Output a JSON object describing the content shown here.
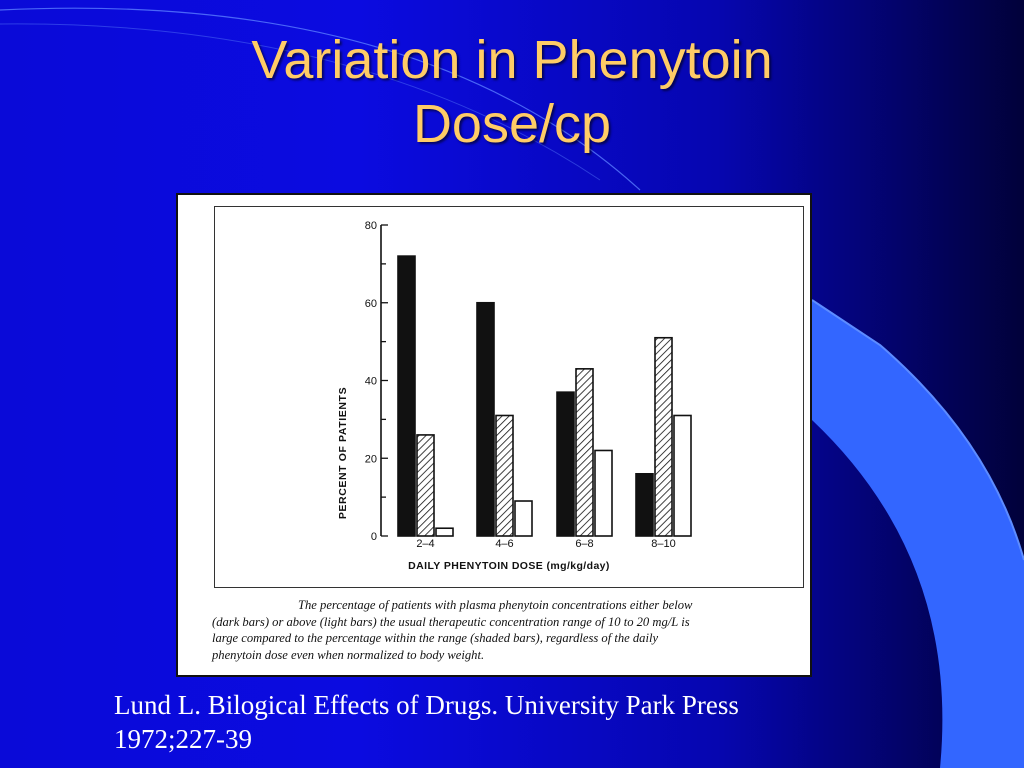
{
  "slide": {
    "title_lines": [
      "Variation in Phenytoin",
      "Dose/cp"
    ],
    "title_color": "#ffcc66",
    "background_color": "#0a0ad8",
    "accent_color": "#3366ff",
    "reference_lines": [
      "Lund L. Bilogical Effects of Drugs. University Park Press",
      "1972;227-39"
    ]
  },
  "figure": {
    "caption_lines": [
      "The percentage of patients with plasma phenytoin concentrations either below",
      "(dark bars) or above (light bars) the usual therapeutic concentration range of 10 to 20 mg/L is",
      "large compared to the percentage within the range (shaded bars), regardless of the daily",
      "phenytoin dose even when normalized to body weight."
    ]
  },
  "chart_data": {
    "type": "bar",
    "title": "",
    "xlabel": "DAILY PHENYTOIN DOSE (mg/kg/day)",
    "ylabel": "PERCENT OF PATIENTS",
    "ylim": [
      0,
      80
    ],
    "yticks": [
      0,
      20,
      40,
      60,
      80
    ],
    "categories": [
      "2–4",
      "4–6",
      "6–8",
      "8–10"
    ],
    "series": [
      {
        "values": [
          72,
          60,
          37,
          16
        ],
        "color": "#111111",
        "pattern": "solid"
      },
      {
        "values": [
          26,
          31,
          43,
          51
        ],
        "color": "#ffffff",
        "pattern": "hatched"
      },
      {
        "values": [
          2,
          9,
          22,
          31
        ],
        "color": "#ffffff",
        "pattern": "open"
      }
    ],
    "grid": false,
    "legend": "none"
  }
}
